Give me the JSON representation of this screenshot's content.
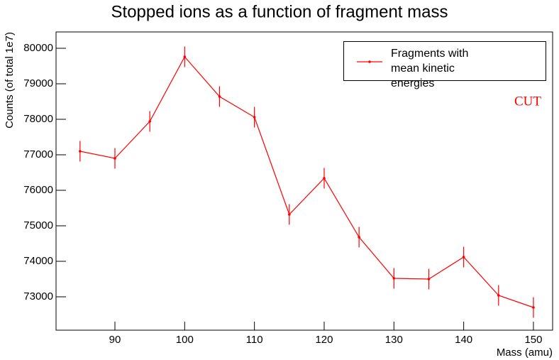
{
  "chart_data": {
    "type": "line",
    "title": "Stopped ions as a function of fragment mass",
    "x_label": "Mass (amu)",
    "y_label": "Counts (of total 1e7)",
    "annotation": "CUT",
    "x": [
      85,
      90,
      95,
      100,
      105,
      110,
      115,
      120,
      125,
      130,
      135,
      140,
      145,
      150
    ],
    "series": [
      {
        "name": "Fragments with mean kinetic energies",
        "color": "#ff0000",
        "values": [
          77100,
          76900,
          77940,
          79760,
          78640,
          78060,
          75320,
          76340,
          74680,
          73520,
          73500,
          74120,
          73040,
          72700
        ],
        "errors": [
          290,
          290,
          290,
          290,
          290,
          290,
          290,
          290,
          290,
          290,
          290,
          290,
          290,
          290
        ]
      }
    ],
    "xlim": [
      81.56,
      152.75
    ],
    "ylim": [
      72060,
      80460
    ],
    "xticks": [
      90,
      100,
      110,
      120,
      130,
      140,
      150
    ],
    "yticks": [
      73000,
      74000,
      75000,
      76000,
      77000,
      78000,
      79000,
      80000
    ],
    "legend": "upper right"
  }
}
